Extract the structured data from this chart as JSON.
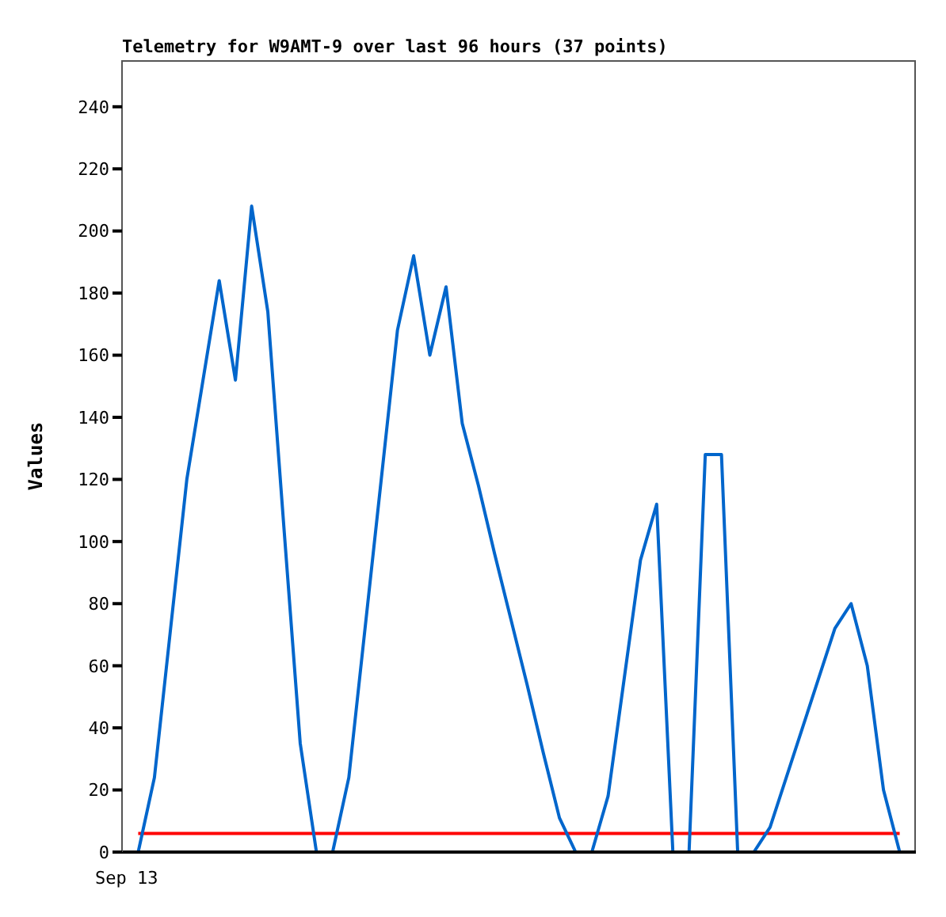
{
  "chart_data": {
    "type": "line",
    "title": "Telemetry for W9AMT-9 over last 96 hours (37 points)",
    "ylabel": "Values",
    "annotations": [
      "Sep 13"
    ],
    "ylim": [
      0,
      255
    ],
    "yticks": [
      0,
      20,
      40,
      60,
      80,
      100,
      120,
      140,
      160,
      180,
      200,
      220,
      240
    ],
    "categories": [
      null,
      null,
      null,
      null,
      null,
      null,
      null,
      null,
      null,
      null,
      null,
      null,
      null,
      null,
      null,
      null,
      null,
      null,
      null,
      null,
      null,
      null,
      null,
      null,
      null,
      null,
      null,
      null,
      null,
      null,
      null,
      null,
      null,
      null,
      null,
      null,
      null,
      null,
      null,
      null,
      null,
      null,
      null,
      null,
      null,
      null,
      null,
      null
    ],
    "series": [
      {
        "color": "#0066cc",
        "values": [
          0,
          24,
          72,
          120,
          152,
          184,
          152,
          208,
          174,
          104,
          35,
          0,
          0,
          24,
          72,
          120,
          168,
          192,
          160,
          182,
          138,
          118,
          96,
          75,
          54,
          32,
          11,
          0,
          0,
          18,
          56,
          94,
          112,
          0,
          0,
          128,
          128,
          0,
          0,
          8,
          24,
          40,
          56,
          72,
          80,
          60,
          20,
          0
        ]
      }
    ],
    "ref_lines": [
      {
        "axis": "y",
        "value": 6,
        "color": "#ff0000"
      }
    ]
  }
}
